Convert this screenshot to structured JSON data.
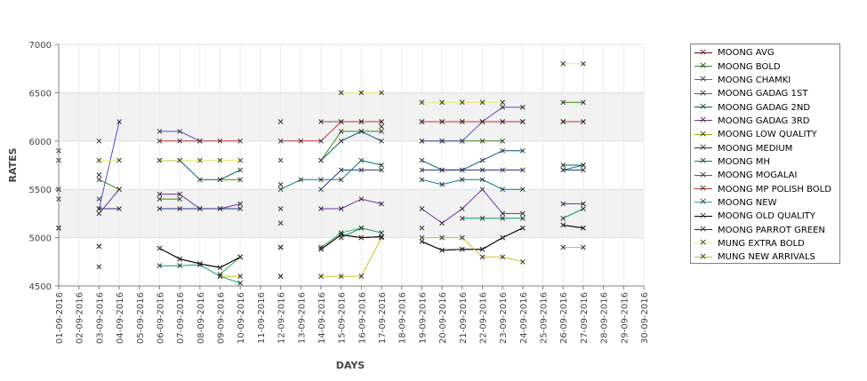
{
  "chart_data": {
    "type": "line",
    "xlabel": "DAYS",
    "ylabel": "RATES",
    "ylim": [
      4500,
      7000
    ],
    "yticks": [
      4500,
      5000,
      5500,
      6000,
      6500,
      7000
    ],
    "categories": [
      "01-09-2016",
      "02-09-2016",
      "03-09-2016",
      "04-09-2016",
      "05-09-2016",
      "06-09-2016",
      "07-09-2016",
      "08-09-2016",
      "09-09-2016",
      "10-09-2016",
      "11-09-2016",
      "12-09-2016",
      "13-09-2016",
      "14-09-2016",
      "15-09-2016",
      "16-09-2016",
      "17-09-2016",
      "18-09-2016",
      "19-09-2016",
      "20-09-2016",
      "21-09-2016",
      "22-09-2016",
      "23-09-2016",
      "24-09-2016",
      "25-09-2016",
      "26-09-2016",
      "27-09-2016",
      "28-09-2016",
      "29-09-2016",
      "30-09-2016"
    ],
    "legend_position": "right",
    "grid": true,
    "series": [
      {
        "name": "MOONG AVG",
        "color": "#800000",
        "values": [
          null,
          null,
          4910,
          null,
          null,
          4890,
          4780,
          4730,
          4690,
          4800,
          null,
          4900,
          null,
          4880,
          5030,
          5000,
          5010,
          null,
          4960,
          4870,
          4880,
          4880,
          5000,
          5100,
          null,
          5130,
          5100,
          null,
          null,
          null
        ]
      },
      {
        "name": "MOONG BOLD",
        "color": "#3a8a12",
        "values": [
          5500,
          null,
          5600,
          5500,
          null,
          5400,
          5400,
          null,
          5600,
          5600,
          null,
          5800,
          null,
          5800,
          6100,
          6100,
          6100,
          null,
          6000,
          6000,
          6000,
          6000,
          6000,
          null,
          null,
          6400,
          6400,
          null,
          null,
          null
        ]
      },
      {
        "name": "MOONG CHAMKI",
        "color": "#00a060",
        "values": [
          null,
          null,
          4700,
          null,
          null,
          4710,
          4710,
          4720,
          4600,
          4530,
          null,
          4600,
          null,
          null,
          5000,
          5100,
          5050,
          null,
          5100,
          null,
          5200,
          5200,
          5200,
          5200,
          null,
          5200,
          5300,
          null,
          null,
          null
        ]
      },
      {
        "name": "MOONG GADAG 1ST",
        "color": "#5050c0",
        "values": [
          5100,
          null,
          5300,
          6200,
          null,
          6100,
          6100,
          6000,
          null,
          null,
          null,
          null,
          null,
          null,
          null,
          null,
          6150,
          null,
          6000,
          6000,
          6000,
          6200,
          6350,
          6350,
          null,
          6200,
          null,
          null,
          null,
          null
        ]
      },
      {
        "name": "MOONG GADAG 2ND",
        "color": "#006070",
        "values": [
          5500,
          null,
          5650,
          null,
          null,
          5800,
          5800,
          5600,
          5600,
          5700,
          null,
          5550,
          null,
          5800,
          6000,
          6100,
          6000,
          null,
          5800,
          5700,
          5700,
          5800,
          5900,
          5900,
          null,
          5750,
          5750,
          null,
          null,
          null
        ]
      },
      {
        "name": "MOONG GADAG 3RD",
        "color": "#7030a0",
        "values": [
          5100,
          null,
          5250,
          5500,
          null,
          5450,
          5450,
          5300,
          5300,
          5350,
          null,
          5150,
          null,
          5300,
          5300,
          5400,
          5350,
          null,
          5300,
          5150,
          5300,
          5500,
          5250,
          5250,
          null,
          5350,
          5350,
          null,
          null,
          null
        ]
      },
      {
        "name": "MOONG LOW QUALITY",
        "color": "#8fb000",
        "values": [
          null,
          null,
          null,
          null,
          null,
          null,
          null,
          null,
          null,
          null,
          null,
          null,
          null,
          null,
          null,
          null,
          null,
          null,
          null,
          null,
          null,
          null,
          null,
          null,
          null,
          null,
          null,
          null,
          null,
          null
        ]
      },
      {
        "name": "MOONG MEDIUM",
        "color": "#203080",
        "values": [
          5100,
          null,
          5300,
          5300,
          null,
          5300,
          5300,
          5300,
          5300,
          5300,
          null,
          5300,
          null,
          5500,
          5700,
          5700,
          5700,
          null,
          5700,
          5700,
          5700,
          5700,
          5700,
          5700,
          null,
          5700,
          5700,
          null,
          null,
          null
        ]
      },
      {
        "name": "MOONG MH",
        "color": "#008080",
        "values": [
          5400,
          null,
          5400,
          null,
          null,
          null,
          null,
          null,
          null,
          null,
          null,
          5500,
          5600,
          5600,
          5600,
          5800,
          5750,
          null,
          5600,
          5550,
          5600,
          5600,
          5500,
          5500,
          null,
          5700,
          5750,
          null,
          null,
          null
        ]
      },
      {
        "name": "MOONG MOGALAI",
        "color": "#805050",
        "values": [
          null,
          null,
          null,
          null,
          null,
          null,
          null,
          null,
          null,
          null,
          null,
          6200,
          null,
          6200,
          6200,
          6200,
          6200,
          null,
          6200,
          6200,
          6200,
          6200,
          6200,
          6200,
          null,
          6200,
          6200,
          null,
          null,
          null
        ]
      },
      {
        "name": "MOONG MP POLISH BOLD",
        "color": "#c03030",
        "values": [
          5800,
          null,
          6000,
          null,
          null,
          6000,
          6000,
          6000,
          6000,
          6000,
          null,
          6000,
          6000,
          6000,
          6200,
          6200,
          6200,
          null,
          6200,
          6200,
          6200,
          6200,
          6200,
          6200,
          null,
          6200,
          6200,
          null,
          null,
          null
        ]
      },
      {
        "name": "MOONG NEW",
        "color": "#30b060",
        "values": [
          null,
          null,
          null,
          null,
          null,
          null,
          null,
          null,
          4620,
          4800,
          null,
          4900,
          null,
          4900,
          5050,
          5100,
          null,
          null,
          null,
          null,
          null,
          null,
          null,
          null,
          null,
          null,
          null,
          null,
          null,
          null
        ]
      },
      {
        "name": "MOONG OLD QUALITY",
        "color": "#000000",
        "values": [
          null,
          null,
          4910,
          null,
          null,
          4890,
          4780,
          4730,
          4690,
          4800,
          null,
          4900,
          null,
          4880,
          5030,
          5000,
          5010,
          null,
          4960,
          4870,
          4880,
          4880,
          5000,
          5100,
          null,
          5130,
          5100,
          null,
          null,
          null
        ]
      },
      {
        "name": "MOONG PARROT GREEN",
        "color": "#5000a0",
        "values": [
          null,
          null,
          null,
          null,
          null,
          null,
          null,
          null,
          null,
          null,
          null,
          null,
          null,
          null,
          null,
          null,
          null,
          null,
          null,
          null,
          null,
          null,
          null,
          null,
          null,
          null,
          null,
          null,
          null,
          null
        ]
      },
      {
        "name": "MUNG EXTRA BOLD",
        "color": "#e8e870",
        "values": [
          5900,
          null,
          5800,
          5800,
          null,
          5800,
          5800,
          5800,
          5800,
          5800,
          null,
          null,
          null,
          null,
          6500,
          6500,
          6500,
          null,
          6400,
          6400,
          6400,
          6400,
          6400,
          null,
          null,
          6800,
          6800,
          null,
          null,
          null
        ]
      },
      {
        "name": "MUNG NEW ARRIVALS",
        "color": "#d0c020",
        "values": [
          null,
          null,
          null,
          null,
          null,
          null,
          null,
          null,
          4600,
          4600,
          null,
          4600,
          null,
          4600,
          4600,
          4600,
          5000,
          null,
          5000,
          5000,
          5000,
          4800,
          4800,
          4750,
          null,
          4900,
          4900,
          null,
          null,
          null
        ]
      }
    ]
  }
}
